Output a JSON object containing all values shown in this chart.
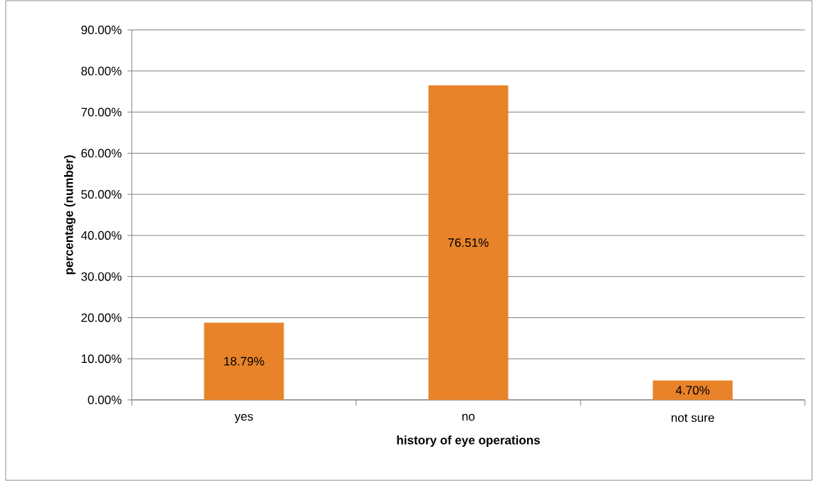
{
  "chart_data": {
    "type": "bar",
    "xlabel": "history of eye operations",
    "ylabel": "percentage (number)",
    "categories": [
      "yes",
      "no",
      "not sure"
    ],
    "values": [
      18.79,
      76.51,
      4.7
    ],
    "value_labels": [
      "18.79%",
      "76.51%",
      "4.70%"
    ],
    "color": "#e8832a",
    "ylim": [
      0,
      90
    ],
    "yticks": [
      {
        "value": 0,
        "label": "0.00%"
      },
      {
        "value": 10,
        "label": "10.00%"
      },
      {
        "value": 20,
        "label": "20.00%"
      },
      {
        "value": 30,
        "label": "30.00%"
      },
      {
        "value": 40,
        "label": "40.00%"
      },
      {
        "value": 50,
        "label": "50.00%"
      },
      {
        "value": 60,
        "label": "60.00%"
      },
      {
        "value": 70,
        "label": "70.00%"
      },
      {
        "value": 80,
        "label": "80.00%"
      },
      {
        "value": 90,
        "label": "90.00%"
      }
    ],
    "grid": "y"
  }
}
